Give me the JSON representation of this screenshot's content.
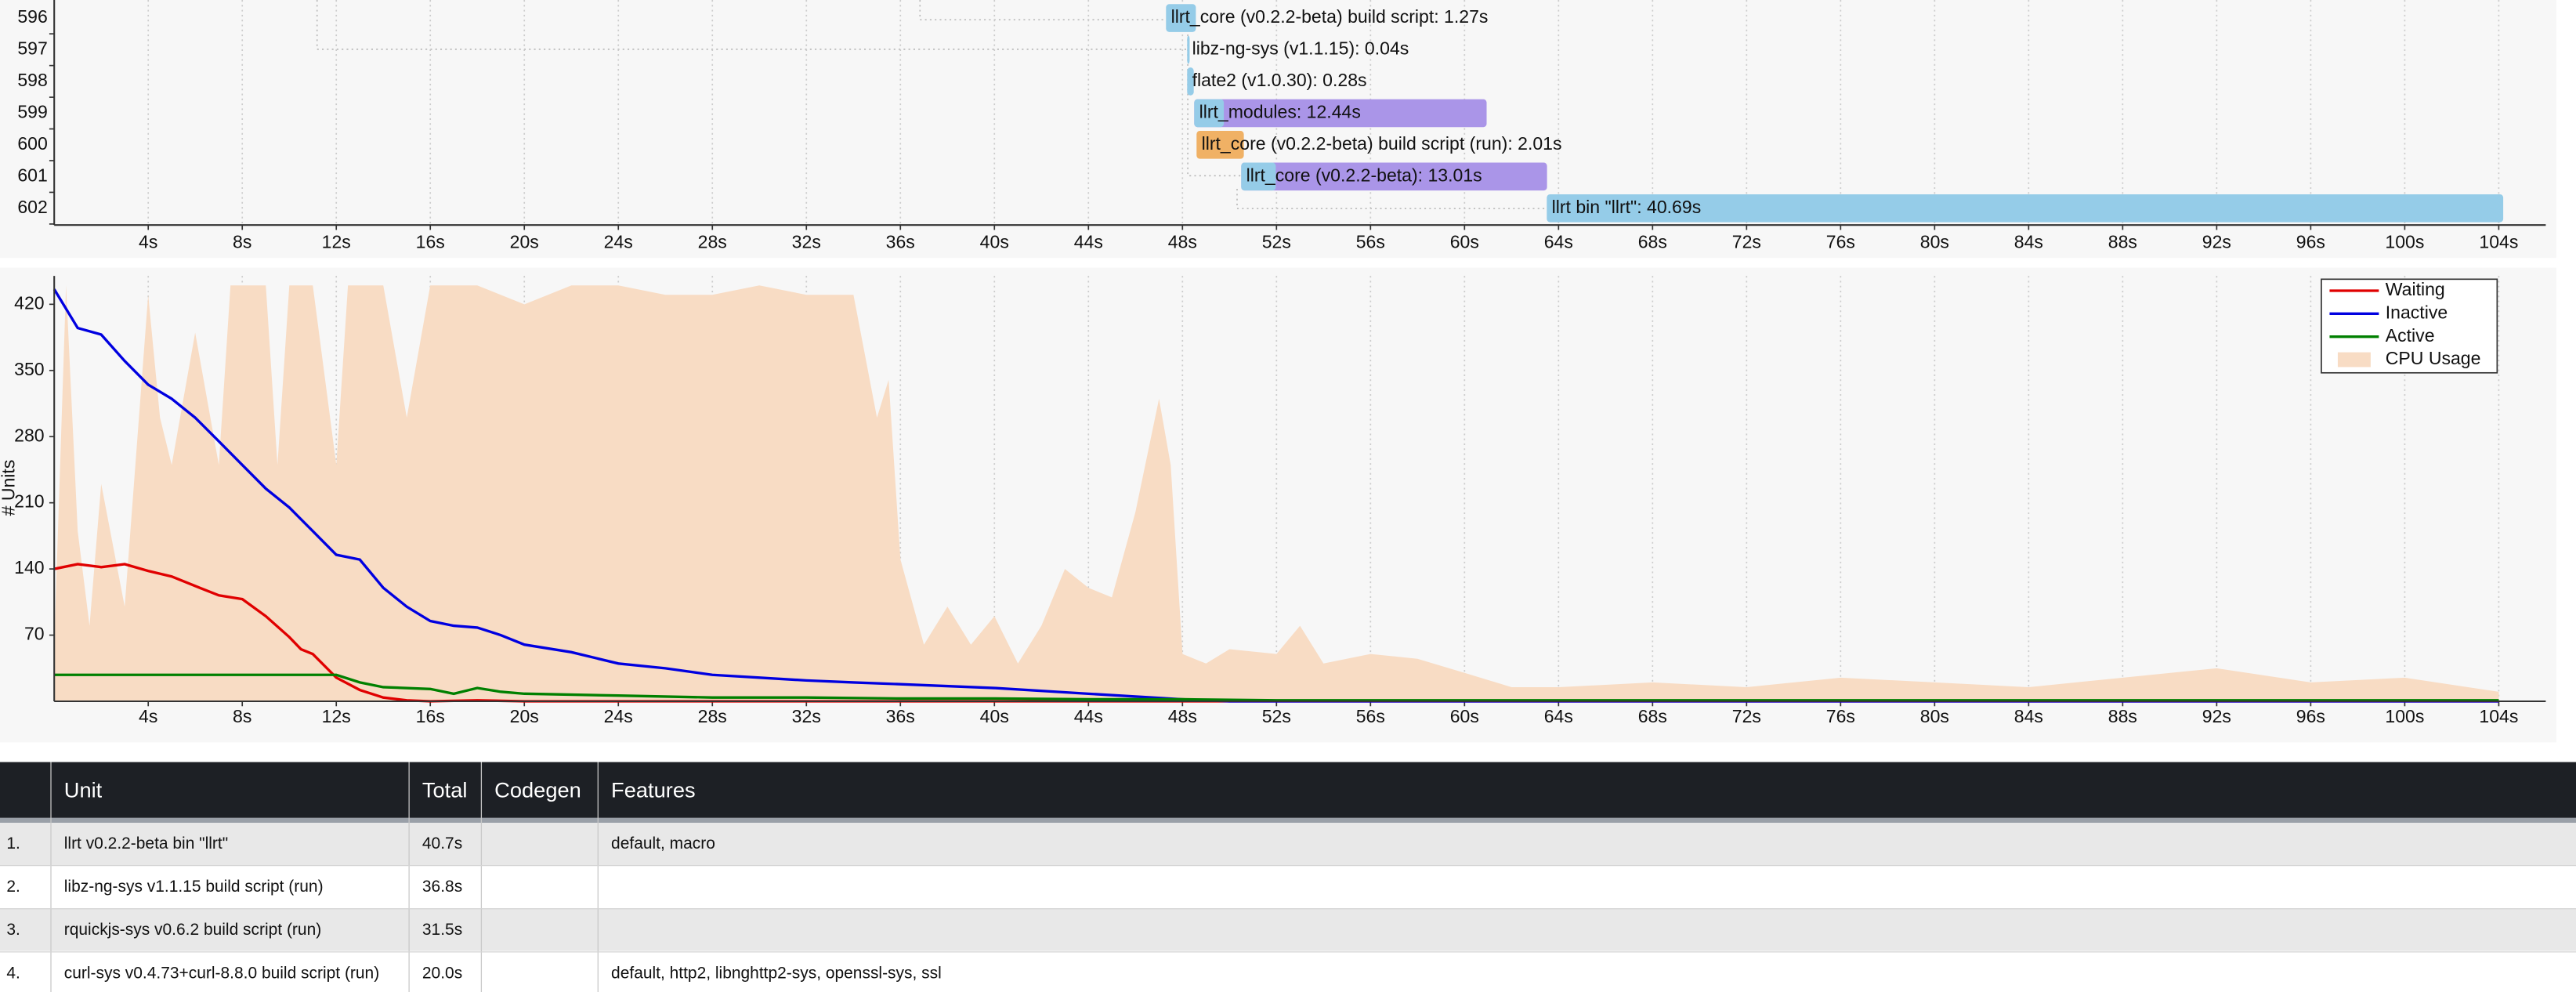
{
  "chart_data": [
    {
      "type": "gantt",
      "xlim": [
        0,
        106
      ],
      "xticks": [
        {
          "value": 4,
          "label": "4s"
        },
        {
          "value": 8,
          "label": "8s"
        },
        {
          "value": 12,
          "label": "12s"
        },
        {
          "value": 16,
          "label": "16s"
        },
        {
          "value": 20,
          "label": "20s"
        },
        {
          "value": 24,
          "label": "24s"
        },
        {
          "value": 28,
          "label": "28s"
        },
        {
          "value": 32,
          "label": "32s"
        },
        {
          "value": 36,
          "label": "36s"
        },
        {
          "value": 40,
          "label": "40s"
        },
        {
          "value": 44,
          "label": "44s"
        },
        {
          "value": 48,
          "label": "48s"
        },
        {
          "value": 52,
          "label": "52s"
        },
        {
          "value": 56,
          "label": "56s"
        },
        {
          "value": 60,
          "label": "60s"
        },
        {
          "value": 64,
          "label": "64s"
        },
        {
          "value": 68,
          "label": "68s"
        },
        {
          "value": 72,
          "label": "72s"
        },
        {
          "value": 76,
          "label": "76s"
        },
        {
          "value": 80,
          "label": "80s"
        },
        {
          "value": 84,
          "label": "84s"
        },
        {
          "value": 88,
          "label": "88s"
        },
        {
          "value": 92,
          "label": "92s"
        },
        {
          "value": 96,
          "label": "96s"
        },
        {
          "value": 100,
          "label": "100s"
        },
        {
          "value": 104,
          "label": "104s"
        }
      ],
      "grid": true,
      "bars": [
        {
          "row": "596",
          "label": "llrt_core (v0.2.2-beta) build script: 1.27s",
          "start": 47.3,
          "duration": 1.27,
          "color": "#95cce8"
        },
        {
          "row": "597",
          "label": "libz-ng-sys (v1.1.15): 0.04s",
          "start": 48.2,
          "duration": 0.04,
          "color": "#95cce8"
        },
        {
          "row": "598",
          "label": "flate2 (v1.0.30): 0.28s",
          "start": 48.2,
          "duration": 0.28,
          "color": "#95cce8"
        },
        {
          "row": "599",
          "label": "llrt_modules: 12.44s",
          "start": 48.5,
          "duration": 12.44,
          "frontend": 1.26,
          "color": "#95cce8",
          "codegen_color": "#aa95e8"
        },
        {
          "row": "600",
          "label": "llrt_core (v0.2.2-beta) build script (run): 2.01s",
          "start": 48.6,
          "duration": 2.01,
          "color": "#f0b165"
        },
        {
          "row": "601",
          "label": "llrt_core (v0.2.2-beta): 13.01s",
          "start": 50.5,
          "duration": 13.01,
          "frontend": 1.47,
          "color": "#95cce8",
          "codegen_color": "#aa95e8"
        },
        {
          "row": "602",
          "label": "llrt bin \"llrt\": 40.69s",
          "start": 63.5,
          "duration": 40.69,
          "color": "#95cce8"
        }
      ]
    },
    {
      "type": "line",
      "ylabel": "# Units",
      "xlim": [
        0,
        106
      ],
      "ylim": [
        0,
        450
      ],
      "xticks": [
        {
          "value": 4,
          "label": "4s"
        },
        {
          "value": 8,
          "label": "8s"
        },
        {
          "value": 12,
          "label": "12s"
        },
        {
          "value": 16,
          "label": "16s"
        },
        {
          "value": 20,
          "label": "20s"
        },
        {
          "value": 24,
          "label": "24s"
        },
        {
          "value": 28,
          "label": "28s"
        },
        {
          "value": 32,
          "label": "32s"
        },
        {
          "value": 36,
          "label": "36s"
        },
        {
          "value": 40,
          "label": "40s"
        },
        {
          "value": 44,
          "label": "44s"
        },
        {
          "value": 48,
          "label": "48s"
        },
        {
          "value": 52,
          "label": "52s"
        },
        {
          "value": 56,
          "label": "56s"
        },
        {
          "value": 60,
          "label": "60s"
        },
        {
          "value": 64,
          "label": "64s"
        },
        {
          "value": 68,
          "label": "68s"
        },
        {
          "value": 72,
          "label": "72s"
        },
        {
          "value": 76,
          "label": "76s"
        },
        {
          "value": 80,
          "label": "80s"
        },
        {
          "value": 84,
          "label": "84s"
        },
        {
          "value": 88,
          "label": "88s"
        },
        {
          "value": 92,
          "label": "92s"
        },
        {
          "value": 96,
          "label": "96s"
        },
        {
          "value": 100,
          "label": "100s"
        },
        {
          "value": 104,
          "label": "104s"
        }
      ],
      "yticks": [
        70,
        140,
        210,
        280,
        350,
        420
      ],
      "grid": true,
      "legend": "upper right",
      "series": [
        {
          "name": "Waiting",
          "color": "#e00000",
          "style": "line",
          "x": [
            0,
            1,
            2,
            3,
            4,
            5,
            6,
            7,
            8,
            9,
            10,
            10.5,
            11,
            12,
            13,
            14,
            15,
            16,
            18,
            20,
            104
          ],
          "values": [
            140,
            145,
            142,
            145,
            138,
            132,
            122,
            112,
            108,
            90,
            68,
            55,
            50,
            25,
            12,
            4,
            1,
            0,
            1,
            0,
            0
          ]
        },
        {
          "name": "Inactive",
          "color": "#0000e0",
          "style": "line",
          "x": [
            0,
            1,
            2,
            3,
            4,
            5,
            6,
            7,
            8,
            9,
            10,
            11,
            12,
            13,
            14,
            15,
            16,
            17,
            18,
            19,
            20,
            22,
            24,
            26,
            28,
            30,
            32,
            34,
            36,
            40,
            44,
            48,
            50,
            104
          ],
          "values": [
            436,
            395,
            388,
            360,
            335,
            320,
            300,
            275,
            250,
            225,
            205,
            180,
            155,
            150,
            120,
            100,
            85,
            80,
            78,
            70,
            60,
            52,
            40,
            35,
            28,
            25,
            22,
            20,
            18,
            14,
            8,
            2,
            0,
            0
          ]
        },
        {
          "name": "Active",
          "color": "#008000",
          "style": "line",
          "x": [
            0,
            12,
            13,
            14,
            16,
            17,
            18,
            19,
            20,
            24,
            28,
            32,
            36,
            40,
            44,
            48,
            52,
            60,
            64,
            104
          ],
          "values": [
            28,
            28,
            20,
            15,
            13,
            8,
            14,
            10,
            8,
            6,
            4,
            4,
            3,
            3,
            2,
            2,
            1,
            1,
            1,
            1
          ]
        },
        {
          "name": "CPU Usage",
          "color": "#f8dcc4",
          "style": "area",
          "x": [
            0,
            0.5,
            1,
            1.5,
            2,
            3,
            4,
            4.5,
            5,
            6,
            7,
            7.5,
            8,
            9,
            9.5,
            10,
            11,
            12,
            12.5,
            14,
            15,
            16,
            18,
            20,
            22,
            24,
            26,
            28,
            30,
            32,
            34,
            35,
            35.5,
            36,
            37,
            38,
            39,
            40,
            41,
            42,
            43,
            44,
            45,
            46,
            47,
            47.5,
            48,
            49,
            50,
            52,
            53,
            54,
            56,
            58,
            60,
            62,
            64,
            68,
            72,
            76,
            80,
            84,
            88,
            92,
            96,
            100,
            104
          ],
          "values": [
            60,
            440,
            180,
            80,
            230,
            100,
            430,
            300,
            250,
            390,
            250,
            440,
            440,
            440,
            250,
            440,
            440,
            250,
            440,
            440,
            300,
            440,
            440,
            420,
            440,
            440,
            430,
            430,
            440,
            430,
            430,
            300,
            340,
            150,
            60,
            100,
            60,
            90,
            40,
            80,
            140,
            120,
            110,
            200,
            320,
            250,
            50,
            40,
            55,
            50,
            80,
            40,
            50,
            45,
            30,
            15,
            15,
            20,
            15,
            25,
            20,
            15,
            25,
            35,
            20,
            25,
            10
          ]
        }
      ]
    }
  ],
  "table": {
    "columns": [
      "Unit",
      "Total",
      "Codegen",
      "Features"
    ],
    "rows": [
      {
        "index": "1.",
        "unit": "llrt v0.2.2-beta bin \"llrt\"",
        "total": "40.7s",
        "features": "default, macro"
      },
      {
        "index": "2.",
        "unit": "libz-ng-sys v1.1.15 build script (run)",
        "total": "36.8s"
      },
      {
        "index": "3.",
        "unit": "rquickjs-sys v0.6.2 build script (run)",
        "total": "31.5s"
      },
      {
        "index": "4.",
        "unit": "curl-sys v0.4.73+curl-8.8.0 build script (run)",
        "total": "20.0s",
        "features": "default, http2, libnghttp2-sys, openssl-sys, ssl"
      }
    ]
  }
}
